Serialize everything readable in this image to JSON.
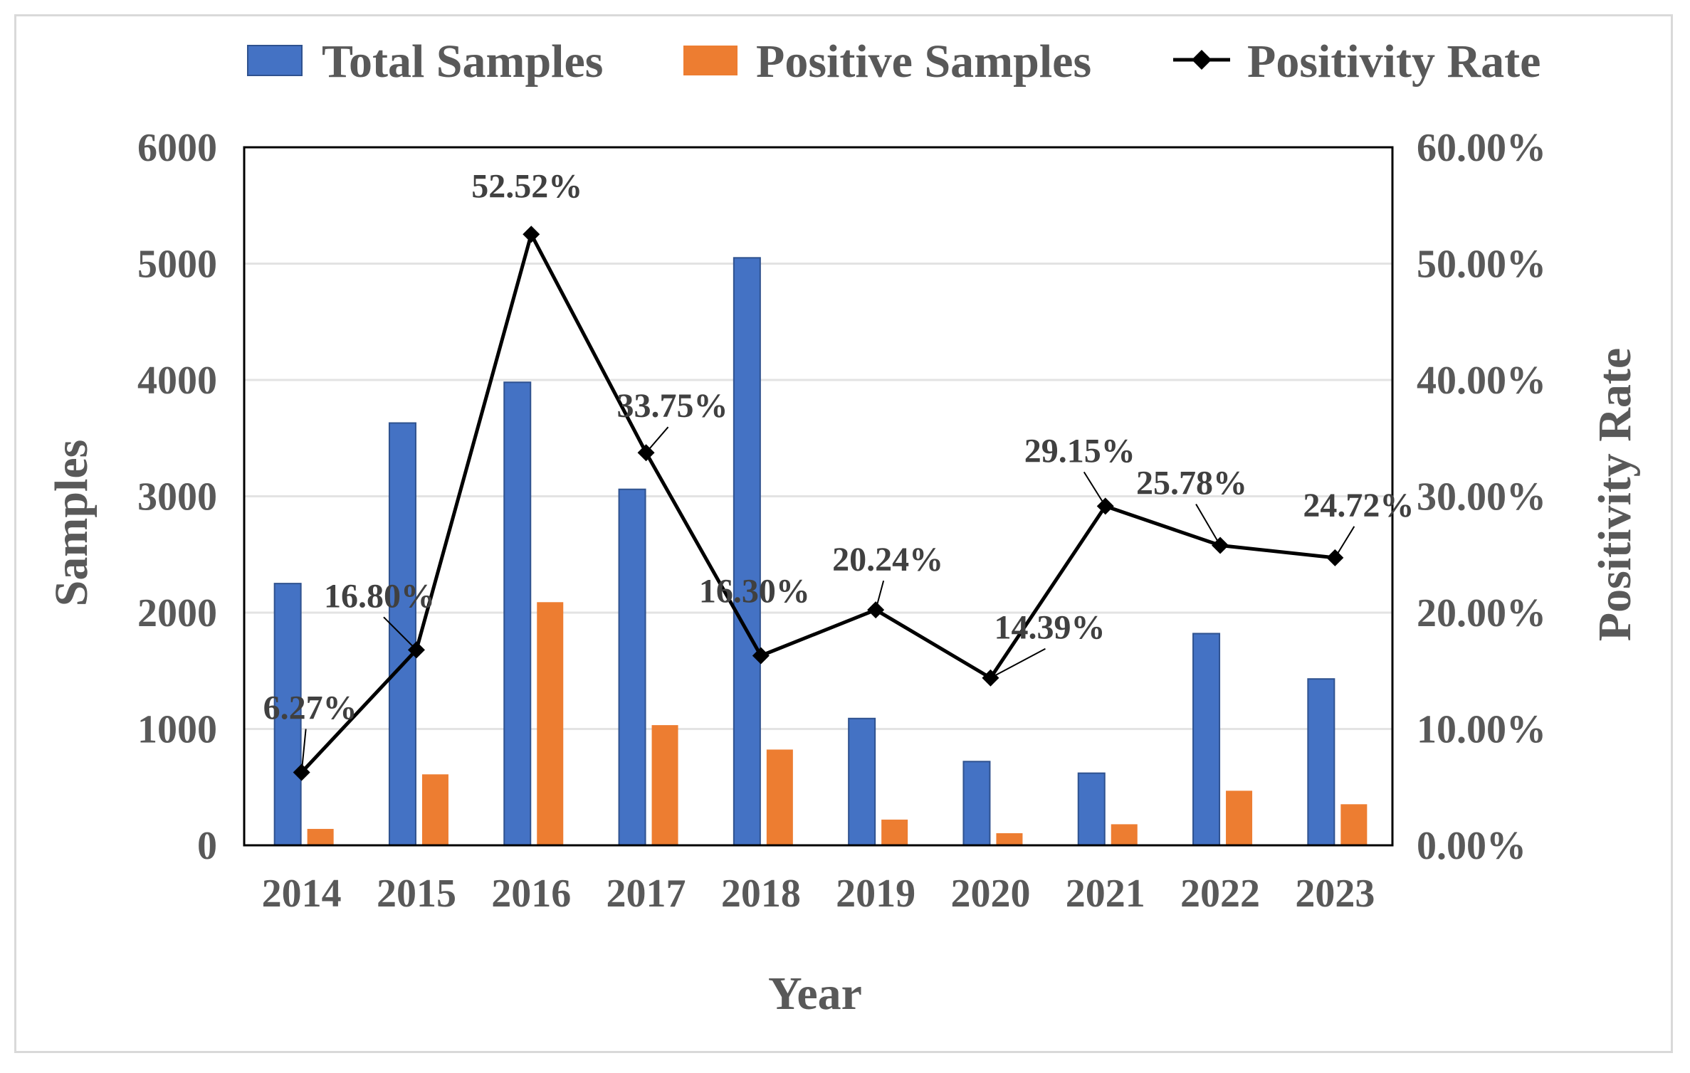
{
  "chart_data": {
    "type": "bar",
    "categories": [
      "2014",
      "2015",
      "2016",
      "2017",
      "2018",
      "2019",
      "2020",
      "2021",
      "2022",
      "2023"
    ],
    "series": [
      {
        "name": "Total Samples",
        "type": "bar",
        "axis": "left",
        "color": "#4472c4",
        "values": [
          2250,
          3630,
          3980,
          3060,
          5050,
          1090,
          720,
          620,
          1820,
          1430
        ]
      },
      {
        "name": "Positive Samples",
        "type": "bar",
        "axis": "left",
        "color": "#ed7d31",
        "values": [
          141,
          610,
          2090,
          1033,
          823,
          221,
          104,
          181,
          469,
          353
        ]
      },
      {
        "name": "Positivity Rate",
        "type": "line",
        "axis": "right",
        "color": "#000000",
        "values": [
          6.27,
          16.8,
          52.52,
          33.75,
          16.3,
          20.24,
          14.39,
          29.15,
          25.78,
          24.72
        ],
        "labels": [
          "6.27%",
          "16.80%",
          "52.52%",
          "33.75%",
          "16.30%",
          "20.24%",
          "14.39%",
          "29.15%",
          "25.78%",
          "24.72%"
        ]
      }
    ],
    "xlabel": "Year",
    "ylabel": "Samples",
    "y2label": "Positivity Rate",
    "ylim": [
      0,
      6000
    ],
    "y2lim": [
      0,
      60
    ],
    "yticks": [
      "0",
      "1000",
      "2000",
      "3000",
      "4000",
      "5000",
      "6000"
    ],
    "y2ticks": [
      "0.00%",
      "10.00%",
      "20.00%",
      "30.00%",
      "40.00%",
      "50.00%",
      "60.00%"
    ],
    "grid": true,
    "legend": "top"
  }
}
